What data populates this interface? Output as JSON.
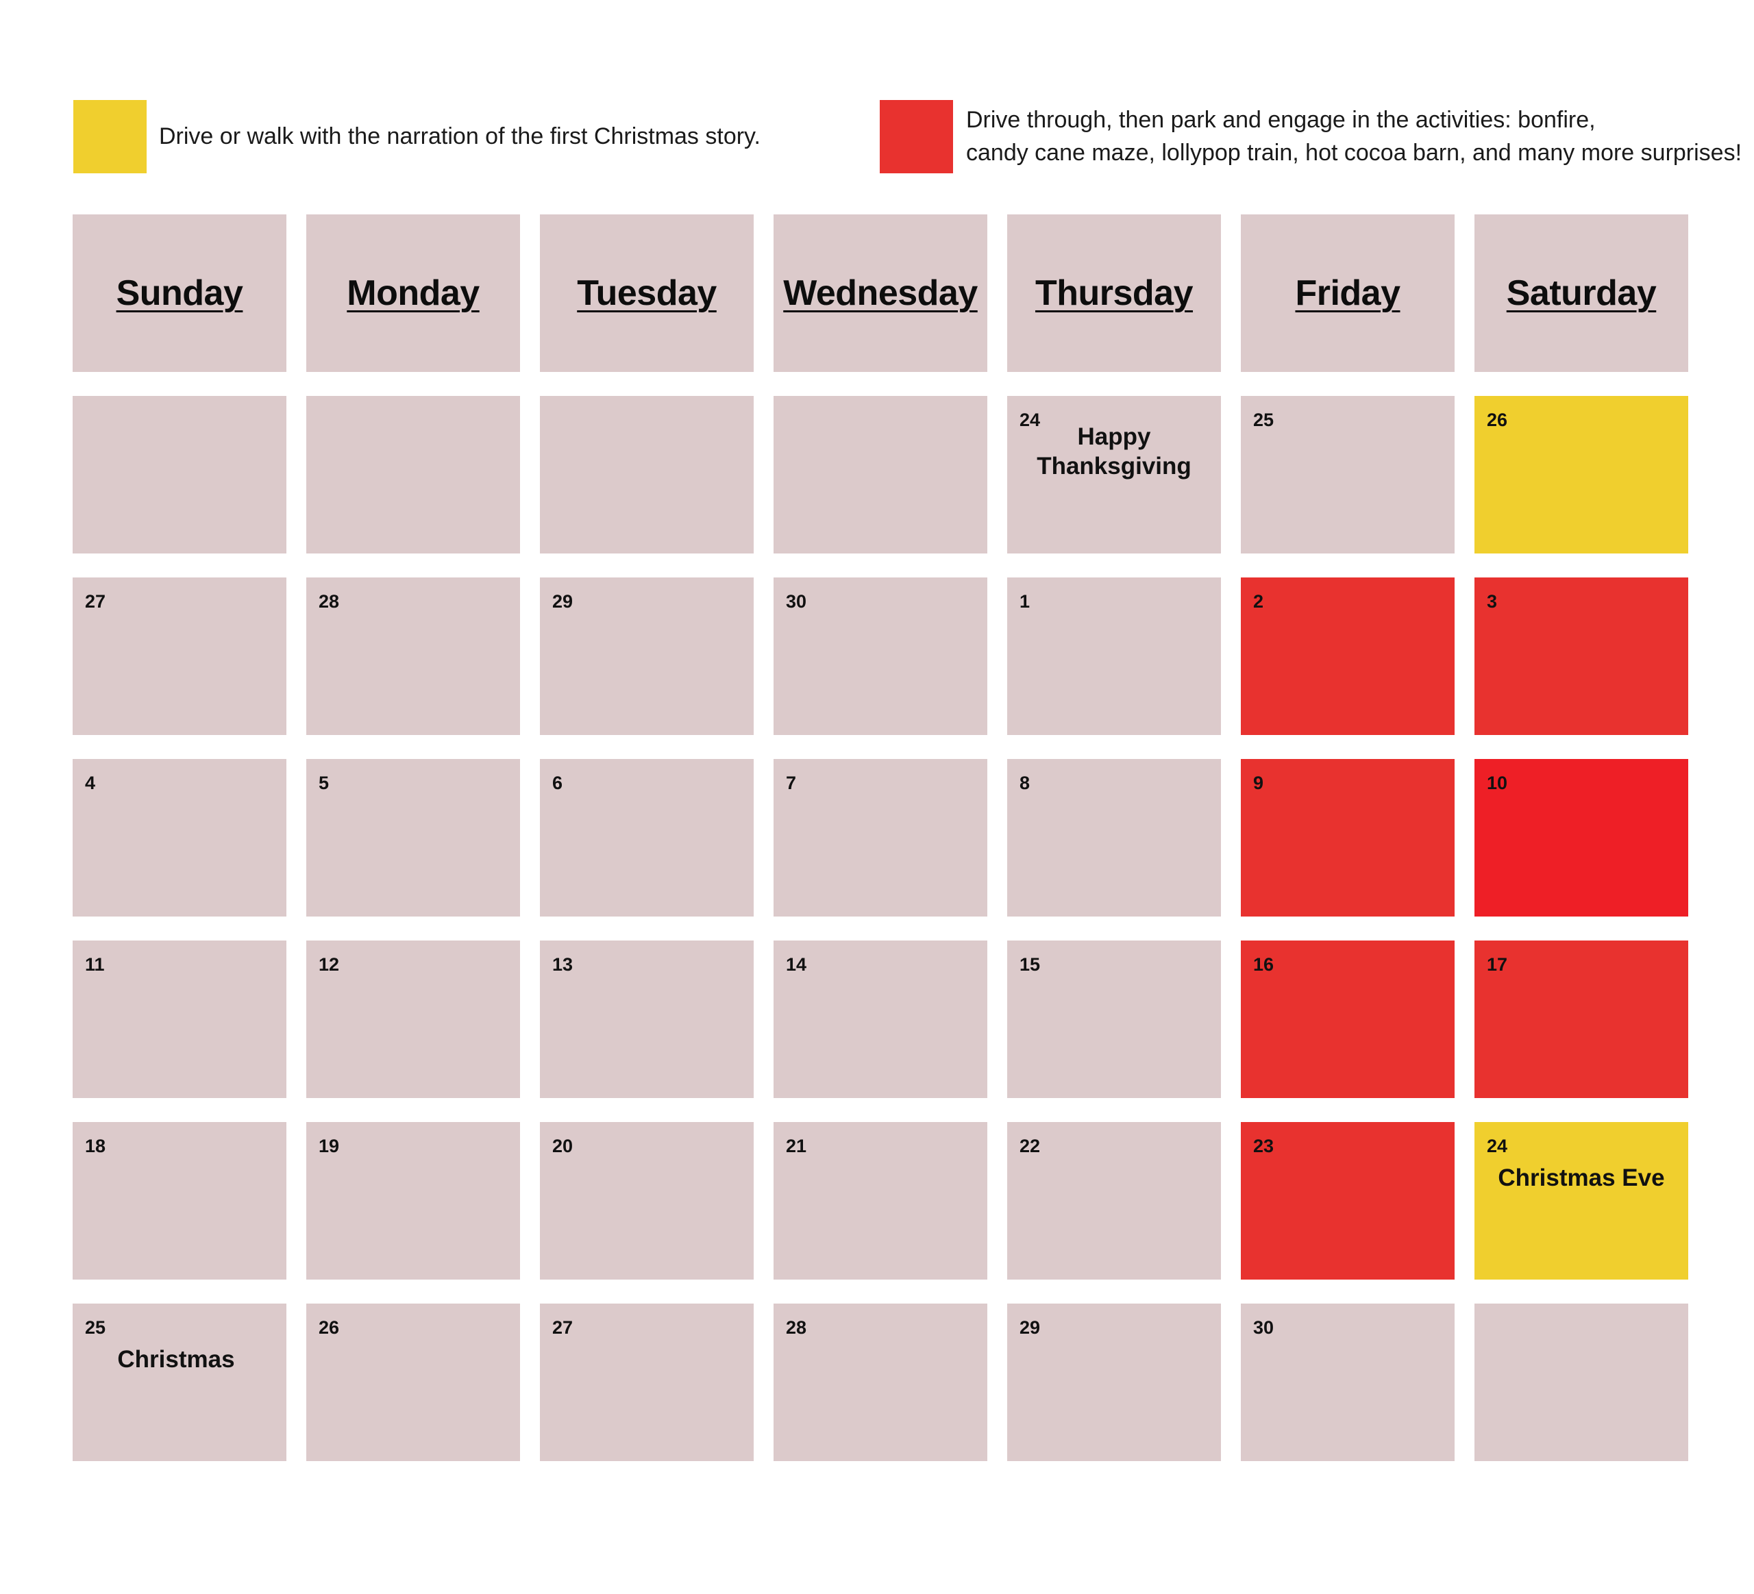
{
  "colors": {
    "empty": "#dccacb",
    "yellow": "#f0cf2e",
    "red": "#e8322f",
    "bright_red": "#ee1f26"
  },
  "legend": {
    "yellow": {
      "swatch": "yellow",
      "text": "Drive or walk with the narration of the first Christmas story."
    },
    "red": {
      "swatch": "red",
      "line1": "Drive through, then park and engage in the activities: bonfire,",
      "line2": "candy cane maze, lollypop train, hot cocoa barn, and many more surprises!"
    }
  },
  "calendar": {
    "days": [
      "Sunday",
      "Monday",
      "Tuesday",
      "Wednesday",
      "Thursday",
      "Friday",
      "Saturday"
    ],
    "weeks": [
      [
        {
          "day": "",
          "fill": "empty"
        },
        {
          "day": "",
          "fill": "empty"
        },
        {
          "day": "",
          "fill": "empty"
        },
        {
          "day": "",
          "fill": "empty"
        },
        {
          "day": "24",
          "fill": "empty",
          "label": "Happy Thanksgiving"
        },
        {
          "day": "25",
          "fill": "empty"
        },
        {
          "day": "26",
          "fill": "yellow"
        }
      ],
      [
        {
          "day": "27",
          "fill": "empty"
        },
        {
          "day": "28",
          "fill": "empty"
        },
        {
          "day": "29",
          "fill": "empty"
        },
        {
          "day": "30",
          "fill": "empty"
        },
        {
          "day": "1",
          "fill": "empty"
        },
        {
          "day": "2",
          "fill": "red"
        },
        {
          "day": "3",
          "fill": "red"
        }
      ],
      [
        {
          "day": "4",
          "fill": "empty"
        },
        {
          "day": "5",
          "fill": "empty"
        },
        {
          "day": "6",
          "fill": "empty"
        },
        {
          "day": "7",
          "fill": "empty"
        },
        {
          "day": "8",
          "fill": "empty"
        },
        {
          "day": "9",
          "fill": "red"
        },
        {
          "day": "10",
          "fill": "bright_red"
        }
      ],
      [
        {
          "day": "11",
          "fill": "empty"
        },
        {
          "day": "12",
          "fill": "empty"
        },
        {
          "day": "13",
          "fill": "empty"
        },
        {
          "day": "14",
          "fill": "empty"
        },
        {
          "day": "15",
          "fill": "empty"
        },
        {
          "day": "16",
          "fill": "red"
        },
        {
          "day": "17",
          "fill": "red"
        }
      ],
      [
        {
          "day": "18",
          "fill": "empty"
        },
        {
          "day": "19",
          "fill": "empty"
        },
        {
          "day": "20",
          "fill": "empty"
        },
        {
          "day": "21",
          "fill": "empty"
        },
        {
          "day": "22",
          "fill": "empty"
        },
        {
          "day": "23",
          "fill": "red"
        },
        {
          "day": "24",
          "fill": "yellow",
          "label": "Christmas Eve"
        }
      ],
      [
        {
          "day": "25",
          "fill": "empty",
          "label": "Christmas"
        },
        {
          "day": "26",
          "fill": "empty"
        },
        {
          "day": "27",
          "fill": "empty"
        },
        {
          "day": "28",
          "fill": "empty"
        },
        {
          "day": "29",
          "fill": "empty"
        },
        {
          "day": "30",
          "fill": "empty"
        },
        {
          "day": "",
          "fill": "empty"
        }
      ]
    ]
  }
}
